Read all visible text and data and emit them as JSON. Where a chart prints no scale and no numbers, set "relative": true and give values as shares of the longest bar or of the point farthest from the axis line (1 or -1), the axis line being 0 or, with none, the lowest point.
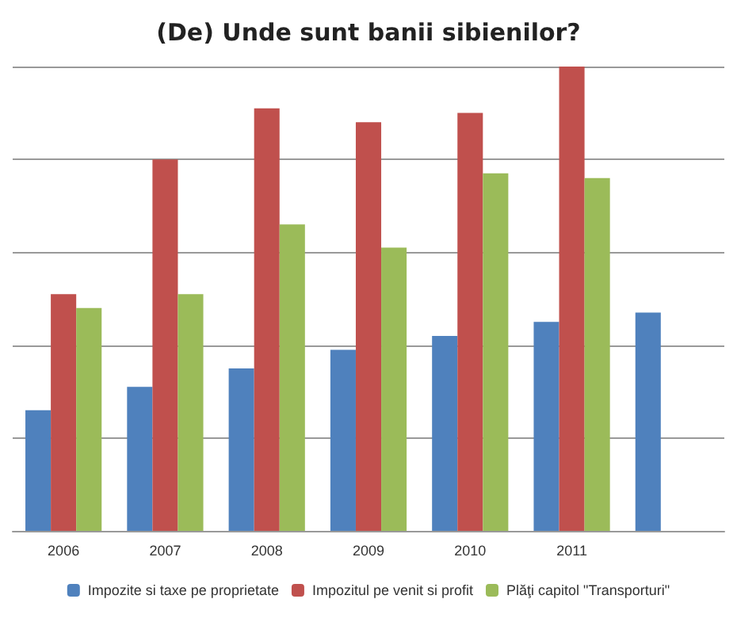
{
  "chart_data": {
    "type": "bar",
    "title": "(De) Unde sunt banii sibienilor?",
    "relative": true,
    "grid": "y",
    "legend": "bottom",
    "categories": [
      "2006",
      "2007",
      "2008",
      "2009",
      "2010",
      "2011",
      null
    ],
    "series": [
      {
        "name": "Impozite si taxe pe proprietate",
        "color": "#4f81bd",
        "values": [
          0.26,
          0.31,
          0.35,
          0.39,
          0.42,
          0.45,
          0.47
        ]
      },
      {
        "name": "Impozitul pe venit si profit",
        "color": "#c0504d",
        "values": [
          0.51,
          0.8,
          0.91,
          0.88,
          0.9,
          1,
          null
        ]
      },
      {
        "name": "Plăţi capitol \"Transporturi\"",
        "color": "#9bbb59",
        "values": [
          0.48,
          0.51,
          0.66,
          0.61,
          0.77,
          0.76,
          null
        ]
      }
    ]
  }
}
